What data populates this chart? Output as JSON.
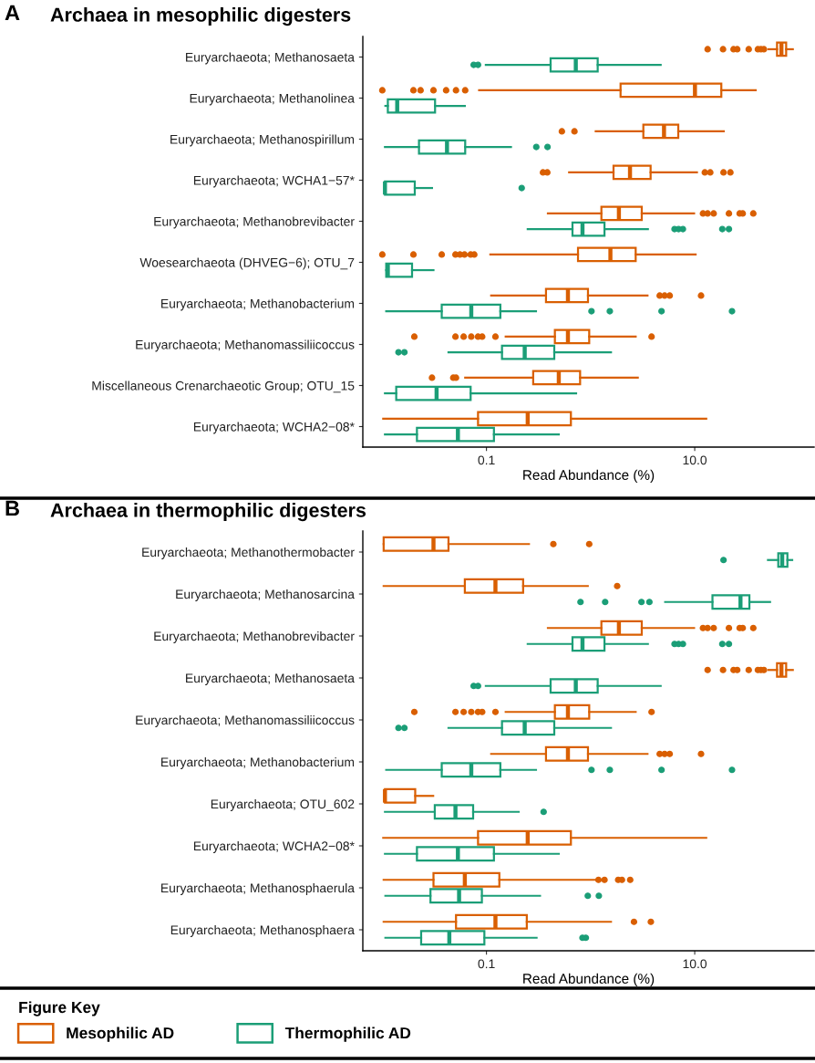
{
  "chart_data": [
    {
      "type": "box",
      "title": "Archaea in mesophilic digesters",
      "annotations": [
        "A"
      ],
      "xlabel": "Read Abundance (%)",
      "orientation": "horizontal",
      "log": "x",
      "xlim": [
        0.0065,
        140
      ],
      "xticks": [
        0.1,
        {
          "value": 10,
          "label": "10.0"
        }
      ],
      "categories": [
        "Euryarchaeota; Methanosaeta",
        "Euryarchaeota; Methanolinea",
        "Euryarchaeota; Methanospirillum",
        "Euryarchaeota; WCHA1−57*",
        "Euryarchaeota; Methanobrevibacter",
        "Woesearchaeota (DHVEG−6); OTU_7",
        "Euryarchaeota; Methanobacterium",
        "Euryarchaeota; Methanomassiliicoccus",
        "Miscellaneous Crenarchaeotic Group; OTU_15",
        "Euryarchaeota; WCHA2−08*"
      ],
      "series": [
        {
          "color": "#d95f02",
          "boxes": [
            {
              "low": 51,
              "q1": 61.7,
              "median": 68,
              "q3": 75.5,
              "high": 87.5,
              "outliers": [
                13.3,
                18.7,
                23.6,
                25.6,
                33,
                40.4,
                43.2,
                46.2
              ]
            },
            {
              "low": 0.085,
              "q1": 1.94,
              "median": 10.05,
              "q3": 18,
              "high": 38.5,
              "outliers": [
                0.01,
                0.0199,
                0.0233,
                0.031,
                0.041,
                0.051,
                0.0625
              ]
            },
            {
              "low": 1.12,
              "q1": 3.21,
              "median": 5.07,
              "q3": 6.95,
              "high": 19,
              "outliers": [
                0.53,
                0.7
              ]
            },
            {
              "low": 0.622,
              "q1": 1.66,
              "median": 2.39,
              "q3": 3.77,
              "high": 10.5,
              "outliers": [
                0.349,
                0.384,
                12.5,
                14.1,
                18.9,
                22
              ]
            },
            {
              "low": 0.389,
              "q1": 1.27,
              "median": 1.87,
              "q3": 3.1,
              "high": 9.86,
              "outliers": [
                12,
                13.3,
                15.2,
                21.3,
                27,
                28.9,
                36.5
              ]
            },
            {
              "low": 0.109,
              "q1": 0.757,
              "median": 1.55,
              "q3": 2.71,
              "high": 10.2,
              "outliers": [
                0.01,
                0.0199,
                0.0372,
                0.0504,
                0.0557,
                0.0616,
                0.0705,
                0.0764
              ]
            },
            {
              "low": 0.111,
              "q1": 0.373,
              "median": 0.606,
              "q3": 0.944,
              "high": 3.52,
              "outliers": [
                4.61,
                5.14,
                5.75,
                11.5
              ]
            },
            {
              "low": 0.153,
              "q1": 0.454,
              "median": 0.606,
              "q3": 0.97,
              "high": 2.71,
              "outliers": [
                0.0203,
                0.0504,
                0.0604,
                0.0715,
                0.083,
                0.091,
                0.122,
                3.85
              ]
            },
            {
              "low": 0.0625,
              "q1": 0.281,
              "median": 0.495,
              "q3": 0.793,
              "high": 2.84,
              "outliers": [
                0.03,
                0.048,
                0.051
              ]
            },
            {
              "low": 0.0102,
              "q1": 0.083,
              "median": 0.249,
              "q3": 0.647,
              "high": 12.9
            }
          ]
        },
        {
          "color": "#1b9e77",
          "boxes": [
            {
              "low": 0.0986,
              "q1": 0.413,
              "median": 0.721,
              "q3": 1.17,
              "high": 4.71,
              "outliers": [
                0.0754,
                0.083
              ]
            },
            {
              "low": 0.0107,
              "q1": 0.0113,
              "median": 0.0139,
              "q3": 0.0321,
              "high": 0.062
            },
            {
              "low": 0.0106,
              "q1": 0.0225,
              "median": 0.0418,
              "q3": 0.0625,
              "high": 0.172,
              "outliers": [
                0.301,
                0.386
              ]
            },
            {
              "low": 0.0106,
              "q1": 0.0106,
              "median": 0.0106,
              "q3": 0.0205,
              "high": 0.03,
              "outliers": [
                0.218
              ]
            },
            {
              "low": 0.249,
              "q1": 0.67,
              "median": 0.836,
              "q3": 1.36,
              "high": 3.55,
              "outliers": [
                6.4,
                7.0,
                7.7,
                18.4,
                21.3
              ]
            },
            {
              "low": 0.0109,
              "q1": 0.0109,
              "median": 0.0113,
              "q3": 0.0193,
              "high": 0.031
            },
            {
              "low": 0.0109,
              "q1": 0.0372,
              "median": 0.0715,
              "q3": 0.136,
              "high": 0.299,
              "outliers": [
                1.02,
                1.53,
                4.8,
                22.8
              ]
            },
            {
              "low": 0.0432,
              "q1": 0.141,
              "median": 0.233,
              "q3": 0.448,
              "high": 1.57,
              "outliers": [
                0.0143,
                0.0163
              ]
            },
            {
              "low": 0.0106,
              "q1": 0.0136,
              "median": 0.0332,
              "q3": 0.0705,
              "high": 0.726
            },
            {
              "low": 0.0106,
              "q1": 0.0215,
              "median": 0.0532,
              "q3": 0.118,
              "high": 0.495
            }
          ]
        }
      ]
    },
    {
      "type": "box",
      "title": "Archaea in thermophilic digesters",
      "annotations": [
        "B"
      ],
      "xlabel": "Read Abundance (%)",
      "orientation": "horizontal",
      "log": "x",
      "xlim": [
        0.0065,
        140
      ],
      "xticks": [
        0.1,
        {
          "value": 10,
          "label": "10.0"
        }
      ],
      "legend": "bottom",
      "legend_title": "Figure Key",
      "categories": [
        "Euryarchaeota; Methanothermobacter",
        "Euryarchaeota; Methanosarcina",
        "Euryarchaeota; Methanobrevibacter",
        "Euryarchaeota; Methanosaeta",
        "Euryarchaeota; Methanomassiliicoccus",
        "Euryarchaeota; Methanobacterium",
        "Euryarchaeota; OTU_602",
        "Euryarchaeota; WCHA2−08*",
        "Euryarchaeota; Methanosphaerula",
        "Euryarchaeota; Methanosphaera"
      ],
      "series": [
        {
          "name": "Mesophilic AD",
          "color": "#d95f02",
          "boxes": [
            {
              "low": 0.0103,
              "q1": 0.0103,
              "median": 0.031,
              "q3": 0.0432,
              "high": 0.256,
              "outliers": [
                0.439,
                0.97
              ]
            },
            {
              "low": 0.0103,
              "q1": 0.062,
              "median": 0.122,
              "q3": 0.225,
              "high": 0.94,
              "outliers": [
                1.8
              ]
            },
            {
              "low": 0.389,
              "q1": 1.27,
              "median": 1.87,
              "q3": 3.1,
              "high": 9.86,
              "outliers": [
                12,
                13.3,
                15.2,
                21.3,
                27,
                28.9,
                36.5
              ]
            },
            {
              "low": 51,
              "q1": 61.7,
              "median": 68,
              "q3": 75.5,
              "high": 87.5,
              "outliers": [
                13.3,
                18.7,
                23.6,
                25.6,
                33,
                40.4,
                43.2,
                46.2
              ]
            },
            {
              "low": 0.153,
              "q1": 0.454,
              "median": 0.606,
              "q3": 0.97,
              "high": 2.71,
              "outliers": [
                0.0203,
                0.0504,
                0.0604,
                0.0715,
                0.083,
                0.091,
                0.122,
                3.85
              ]
            },
            {
              "low": 0.111,
              "q1": 0.373,
              "median": 0.606,
              "q3": 0.944,
              "high": 3.52,
              "outliers": [
                4.61,
                5.14,
                5.75,
                11.5
              ]
            },
            {
              "low": 0.0106,
              "q1": 0.0106,
              "median": 0.0106,
              "q3": 0.0207,
              "high": 0.0308
            },
            {
              "low": 0.0102,
              "q1": 0.083,
              "median": 0.249,
              "q3": 0.647,
              "high": 12.9
            },
            {
              "low": 0.0103,
              "q1": 0.031,
              "median": 0.062,
              "q3": 0.133,
              "high": 1.15,
              "outliers": [
                1.19,
                1.36,
                1.84,
                2.0,
                2.4
              ]
            },
            {
              "low": 0.0103,
              "q1": 0.051,
              "median": 0.122,
              "q3": 0.244,
              "high": 1.57,
              "outliers": [
                2.61,
                3.79
              ]
            }
          ]
        },
        {
          "name": "Thermophilic AD",
          "color": "#1b9e77",
          "boxes": [
            {
              "low": 50.5,
              "q1": 63.4,
              "median": 69.2,
              "q3": 77.6,
              "high": 86.3,
              "outliers": [
                18.9
              ]
            },
            {
              "low": 5.2,
              "q1": 14.8,
              "median": 27.5,
              "q3": 33.5,
              "high": 52.9,
              "outliers": [
                0.8,
                1.38,
                3.08,
                3.67
              ]
            },
            {
              "low": 0.249,
              "q1": 0.67,
              "median": 0.836,
              "q3": 1.36,
              "high": 3.55,
              "outliers": [
                6.4,
                7.0,
                7.7,
                18.4,
                21.3
              ]
            },
            {
              "low": 0.0986,
              "q1": 0.413,
              "median": 0.721,
              "q3": 1.17,
              "high": 4.71,
              "outliers": [
                0.0754,
                0.083
              ]
            },
            {
              "low": 0.0432,
              "q1": 0.141,
              "median": 0.233,
              "q3": 0.448,
              "high": 1.57,
              "outliers": [
                0.0143,
                0.0163
              ]
            },
            {
              "low": 0.0109,
              "q1": 0.0372,
              "median": 0.0715,
              "q3": 0.136,
              "high": 0.299,
              "outliers": [
                1.02,
                1.53,
                4.8,
                22.8
              ]
            },
            {
              "low": 0.0106,
              "q1": 0.0319,
              "median": 0.0504,
              "q3": 0.0745,
              "high": 0.204,
              "outliers": [
                0.354
              ]
            },
            {
              "low": 0.0106,
              "q1": 0.0215,
              "median": 0.0532,
              "q3": 0.118,
              "high": 0.495
            },
            {
              "low": 0.0107,
              "q1": 0.029,
              "median": 0.0546,
              "q3": 0.0904,
              "high": 0.327,
              "outliers": [
                0.94,
                1.2
              ]
            },
            {
              "low": 0.0107,
              "q1": 0.0236,
              "median": 0.044,
              "q3": 0.0955,
              "high": 0.303,
              "outliers": [
                0.836,
                0.9
              ]
            }
          ]
        }
      ]
    }
  ]
}
